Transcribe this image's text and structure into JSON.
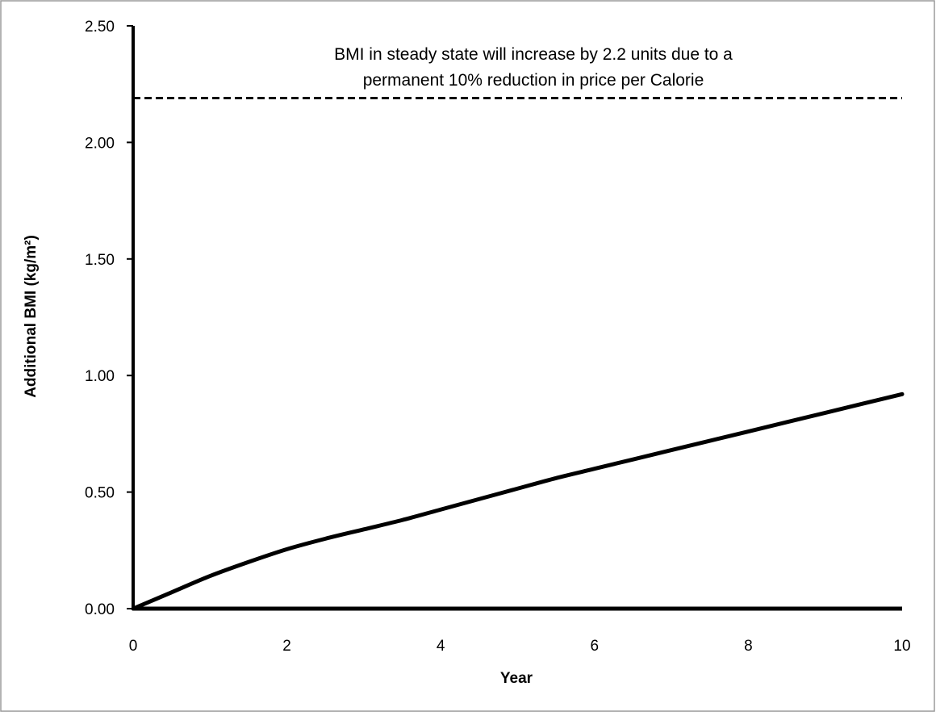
{
  "chart_data": {
    "type": "line",
    "xlabel": "Year",
    "ylabel": "Additional BMI (kg/m²)",
    "xlim": [
      0,
      10
    ],
    "ylim": [
      0,
      2.5
    ],
    "x_ticks": [
      "0",
      "2",
      "4",
      "6",
      "8",
      "10"
    ],
    "y_ticks": [
      "0.00",
      "0.50",
      "1.00",
      "1.50",
      "2.00",
      "2.50"
    ],
    "grid": false,
    "legend": "none",
    "series": [
      {
        "style": "solid",
        "x": [
          0,
          0.5,
          1,
          1.5,
          2,
          2.5,
          3,
          3.5,
          4,
          4.5,
          5,
          5.5,
          6,
          6.5,
          7,
          7.5,
          8,
          8.5,
          9,
          9.5,
          10
        ],
        "y": [
          0,
          0.07,
          0.14,
          0.2,
          0.255,
          0.3,
          0.34,
          0.38,
          0.425,
          0.47,
          0.515,
          0.56,
          0.6,
          0.64,
          0.68,
          0.72,
          0.76,
          0.8,
          0.84,
          0.88,
          0.92
        ]
      },
      {
        "style": "dashed",
        "x": [
          0,
          10
        ],
        "y": [
          2.19,
          2.19
        ]
      }
    ],
    "annotations": [
      {
        "lines": [
          "BMI in steady state will increase by 2.2 units due to a",
          "permanent 10% reduction in price per Calorie"
        ]
      }
    ],
    "colors": {
      "line": "#000000",
      "frame": "#9a9a9a",
      "background": "#ffffff"
    }
  }
}
